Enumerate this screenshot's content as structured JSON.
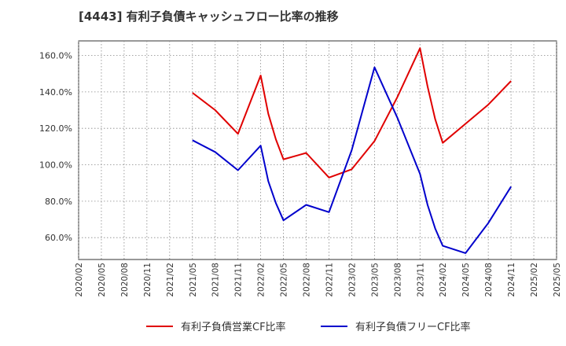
{
  "title": "[4443]  有利子負債キャッシュフロー比率の推移",
  "chart_data": {
    "type": "line",
    "x": [
      "2020/02",
      "2020/05",
      "2020/08",
      "2020/11",
      "2021/02",
      "2021/05",
      "2021/08",
      "2021/11",
      "2022/02",
      "2022/05",
      "2022/08",
      "2022/11",
      "2023/02",
      "2023/05",
      "2023/08",
      "2023/11",
      "2024/02",
      "2024/05",
      "2024/08",
      "2024/11",
      "2025/02",
      "2025/05"
    ],
    "y_ticks": [
      "60.0%",
      "80.0%",
      "100.0%",
      "120.0%",
      "140.0%",
      "160.0%"
    ],
    "ylim": [
      48,
      168
    ],
    "grid": true,
    "legend_position": "bottom",
    "series": [
      {
        "name": "有利子負債営業CF比率",
        "color": "#e00000",
        "points": [
          [
            "2021/05",
            139.5
          ],
          [
            "2021/08",
            130.0
          ],
          [
            "2021/11",
            117.0
          ],
          [
            "2022/02",
            149.0
          ],
          [
            "2022/03",
            128.0
          ],
          [
            "2022/04",
            114.0
          ],
          [
            "2022/05",
            103.0
          ],
          [
            "2022/08",
            106.5
          ],
          [
            "2022/11",
            93.0
          ],
          [
            "2023/02",
            97.5
          ],
          [
            "2023/05",
            113.0
          ],
          [
            "2023/08",
            137.0
          ],
          [
            "2023/11",
            164.0
          ],
          [
            "2023/12",
            143.0
          ],
          [
            "2024/01",
            125.0
          ],
          [
            "2024/02",
            112.0
          ],
          [
            "2024/05",
            122.5
          ],
          [
            "2024/08",
            133.0
          ],
          [
            "2024/11",
            146.0
          ]
        ]
      },
      {
        "name": "有利子負債フリーCF比率",
        "color": "#0000cc",
        "points": [
          [
            "2021/05",
            113.5
          ],
          [
            "2021/08",
            107.0
          ],
          [
            "2021/11",
            97.0
          ],
          [
            "2022/02",
            110.5
          ],
          [
            "2022/03",
            91.0
          ],
          [
            "2022/04",
            79.0
          ],
          [
            "2022/05",
            69.5
          ],
          [
            "2022/08",
            78.0
          ],
          [
            "2022/11",
            74.0
          ],
          [
            "2023/02",
            108.0
          ],
          [
            "2023/05",
            153.5
          ],
          [
            "2023/08",
            126.0
          ],
          [
            "2023/11",
            95.0
          ],
          [
            "2023/12",
            78.0
          ],
          [
            "2024/01",
            65.0
          ],
          [
            "2024/02",
            55.5
          ],
          [
            "2024/05",
            51.5
          ],
          [
            "2024/08",
            68.0
          ],
          [
            "2024/11",
            88.0
          ]
        ]
      }
    ]
  }
}
